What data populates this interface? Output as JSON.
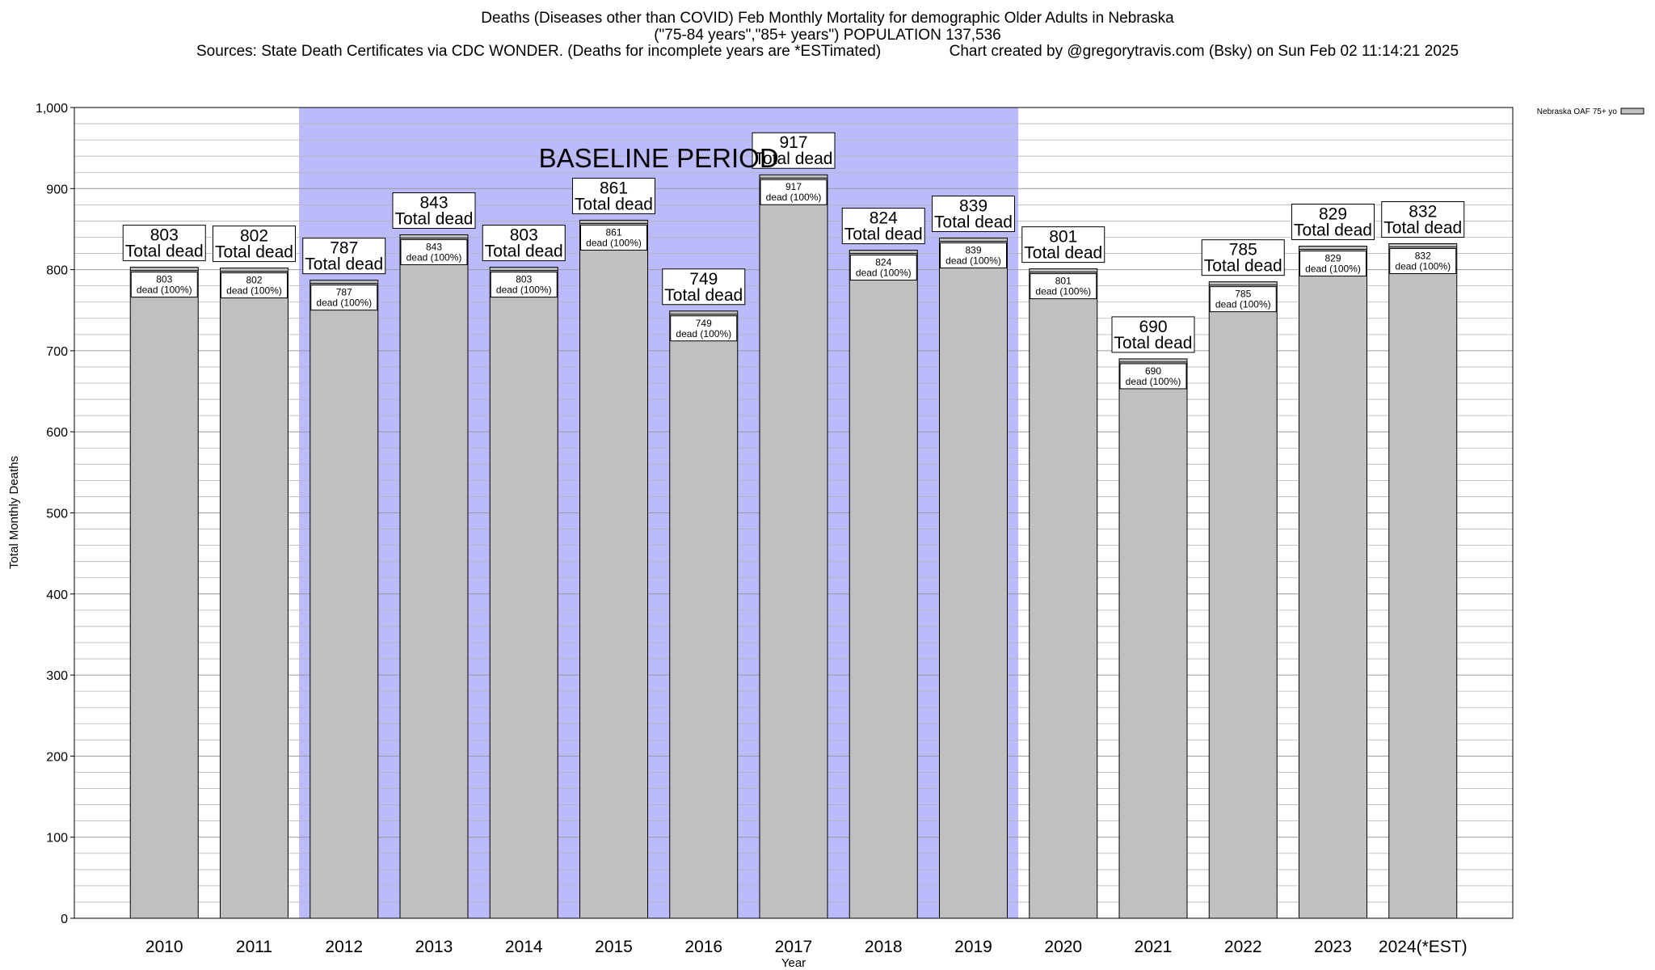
{
  "header": {
    "title_line1": "Deaths (Diseases other than COVID) Feb Monthly Mortality for demographic Older Adults in Nebraska",
    "title_line2": "(\"75-84 years\",\"85+ years\") POPULATION 137,536",
    "title_line3": "Sources: State Death Certificates via CDC WONDER. (Deaths for incomplete years are *ESTimated)                Chart created by @gregorytravis.com (Bsky) on Sun Feb 02 11:14:21 2025"
  },
  "colors": {
    "bar_fill": "#c0c0c0",
    "baseline_band": "#bbbbfc",
    "grid": "#b4b4b4"
  },
  "chart_data": {
    "type": "bar",
    "xlabel": "Year",
    "ylabel": "Total Monthly Deaths",
    "ylim": [
      0,
      1000
    ],
    "yticks": [
      0,
      100,
      200,
      300,
      400,
      500,
      600,
      700,
      800,
      900,
      1000
    ],
    "ytick_labels": [
      "0",
      "100",
      "200",
      "300",
      "400",
      "500",
      "600",
      "700",
      "800",
      "900",
      "1,000"
    ],
    "grid": true,
    "categories": [
      "2010",
      "2011",
      "2012",
      "2013",
      "2014",
      "2015",
      "2016",
      "2017",
      "2018",
      "2019",
      "2020",
      "2021",
      "2022",
      "2023",
      "2024(*EST)"
    ],
    "series": [
      {
        "name": "Nebraska OAF 75+ yo",
        "values": [
          803,
          802,
          787,
          843,
          803,
          861,
          749,
          917,
          824,
          839,
          801,
          690,
          785,
          829,
          832
        ]
      }
    ],
    "total_label_suffix": "Total dead",
    "inner_label_suffix": "dead (100%)",
    "annotation": {
      "text": "BASELINE PERIOD",
      "start_category": "2012",
      "end_category": "2019"
    },
    "legend_position": "top-right"
  }
}
